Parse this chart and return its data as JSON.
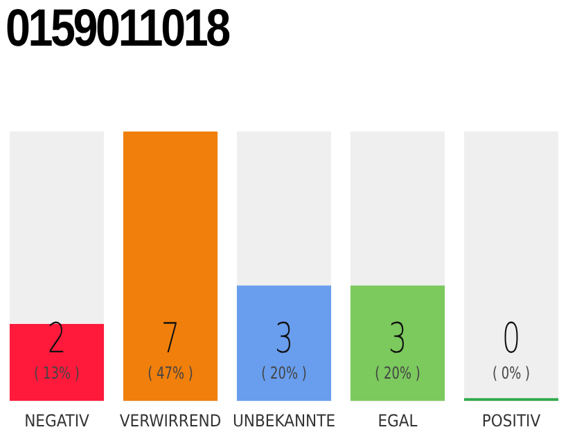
{
  "chart_data": {
    "type": "bar",
    "title": "0159011018",
    "categories": [
      "NEGATIV",
      "VERWIRREND",
      "UNBEKANNTE",
      "EGAL",
      "POSITIV"
    ],
    "values": [
      2,
      7,
      3,
      3,
      0
    ],
    "colors": [
      "#ff1a3c",
      "#f07f0c",
      "#699eee",
      "#7cc95e",
      "#2eaa4a"
    ],
    "data_labels": true,
    "annotations": [
      "( 13% )",
      "( 47% )",
      "( 20% )",
      "( 20% )",
      "( 0% )"
    ],
    "grid": false,
    "legend": false
  }
}
